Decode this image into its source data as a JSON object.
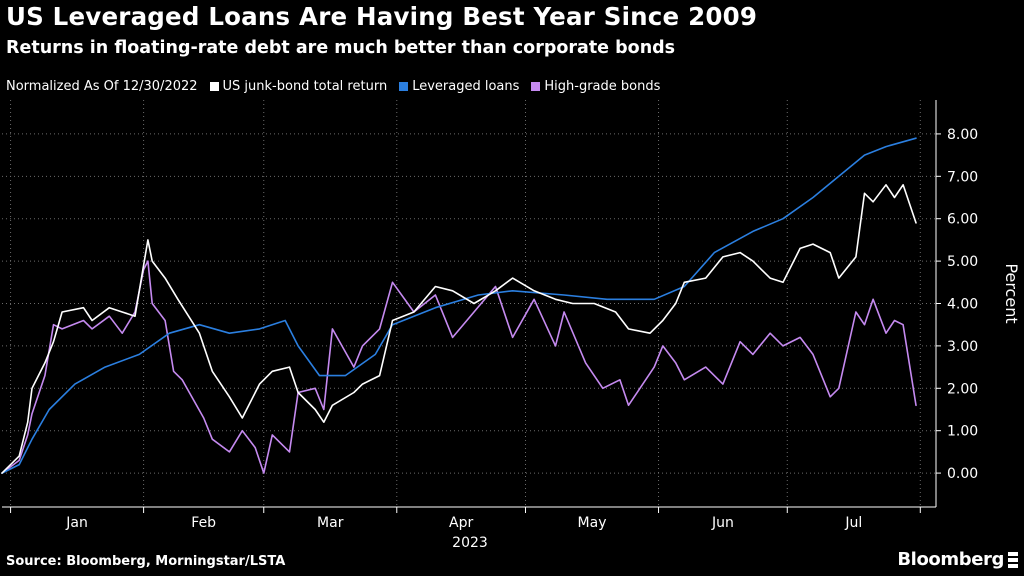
{
  "header": {
    "title": "US Leveraged Loans Are Having Best Year Since 2009",
    "subtitle": "Returns in floating-rate debt are much better than corporate bonds"
  },
  "legend": {
    "note": "Normalized As Of 12/30/2022"
  },
  "footer": {
    "source": "Source: Bloomberg, Morningstar/LSTA",
    "brand": "Bloomberg"
  },
  "colors": {
    "background": "#000000",
    "junk": "#ffffff",
    "loans": "#2b7fe0",
    "highgrade": "#c58af0",
    "axis": "#ffffff",
    "grid": "#6b6b6b"
  },
  "chart_data": {
    "type": "line",
    "title": "US Leveraged Loans Are Having Best Year Since 2009",
    "subtitle": "Returns in floating-rate debt are much better than corporate bonds",
    "ylabel": "Percent",
    "xlabel": "2023",
    "ylim": [
      -0.8,
      8.8
    ],
    "xlim": [
      "2022-12-30",
      "2023-07-31"
    ],
    "y_ticks": [
      "0.00",
      "1.00",
      "2.00",
      "3.00",
      "4.00",
      "5.00",
      "6.00",
      "7.00",
      "8.00"
    ],
    "x_ticks": [
      "Jan",
      "Feb",
      "Mar",
      "Apr",
      "May",
      "Jun",
      "Jul"
    ],
    "grid": true,
    "legend_position": "top-left",
    "series": [
      {
        "name": "US junk-bond total return",
        "points": [
          [
            "2022-12-30",
            0.0
          ],
          [
            "2023-01-03",
            0.4
          ],
          [
            "2023-01-05",
            1.2
          ],
          [
            "2023-01-06",
            2.0
          ],
          [
            "2023-01-09",
            2.6
          ],
          [
            "2023-01-11",
            3.1
          ],
          [
            "2023-01-13",
            3.8
          ],
          [
            "2023-01-18",
            3.9
          ],
          [
            "2023-01-20",
            3.6
          ],
          [
            "2023-01-24",
            3.9
          ],
          [
            "2023-01-27",
            3.8
          ],
          [
            "2023-01-30",
            3.7
          ],
          [
            "2023-02-01",
            4.9
          ],
          [
            "2023-02-02",
            5.5
          ],
          [
            "2023-02-03",
            5.0
          ],
          [
            "2023-02-06",
            4.6
          ],
          [
            "2023-02-09",
            4.1
          ],
          [
            "2023-02-14",
            3.3
          ],
          [
            "2023-02-17",
            2.4
          ],
          [
            "2023-02-21",
            1.8
          ],
          [
            "2023-02-24",
            1.3
          ],
          [
            "2023-02-28",
            2.1
          ],
          [
            "2023-03-03",
            2.4
          ],
          [
            "2023-03-07",
            2.5
          ],
          [
            "2023-03-09",
            1.9
          ],
          [
            "2023-03-13",
            1.5
          ],
          [
            "2023-03-15",
            1.2
          ],
          [
            "2023-03-17",
            1.6
          ],
          [
            "2023-03-22",
            1.9
          ],
          [
            "2023-03-24",
            2.1
          ],
          [
            "2023-03-28",
            2.3
          ],
          [
            "2023-03-31",
            3.6
          ],
          [
            "2023-04-05",
            3.8
          ],
          [
            "2023-04-10",
            4.4
          ],
          [
            "2023-04-14",
            4.3
          ],
          [
            "2023-04-19",
            4.0
          ],
          [
            "2023-04-24",
            4.3
          ],
          [
            "2023-04-28",
            4.6
          ],
          [
            "2023-05-03",
            4.3
          ],
          [
            "2023-05-08",
            4.1
          ],
          [
            "2023-05-12",
            4.0
          ],
          [
            "2023-05-17",
            4.0
          ],
          [
            "2023-05-22",
            3.8
          ],
          [
            "2023-05-25",
            3.4
          ],
          [
            "2023-05-30",
            3.3
          ],
          [
            "2023-06-02",
            3.6
          ],
          [
            "2023-06-05",
            4.0
          ],
          [
            "2023-06-07",
            4.5
          ],
          [
            "2023-06-12",
            4.6
          ],
          [
            "2023-06-16",
            5.1
          ],
          [
            "2023-06-20",
            5.2
          ],
          [
            "2023-06-23",
            5.0
          ],
          [
            "2023-06-27",
            4.6
          ],
          [
            "2023-06-30",
            4.5
          ],
          [
            "2023-07-04",
            5.3
          ],
          [
            "2023-07-07",
            5.4
          ],
          [
            "2023-07-11",
            5.2
          ],
          [
            "2023-07-13",
            4.6
          ],
          [
            "2023-07-17",
            5.1
          ],
          [
            "2023-07-19",
            6.6
          ],
          [
            "2023-07-21",
            6.4
          ],
          [
            "2023-07-24",
            6.8
          ],
          [
            "2023-07-26",
            6.5
          ],
          [
            "2023-07-28",
            6.8
          ],
          [
            "2023-07-31",
            5.9
          ]
        ]
      },
      {
        "name": "Leveraged loans",
        "points": [
          [
            "2022-12-30",
            0.0
          ],
          [
            "2023-01-03",
            0.2
          ],
          [
            "2023-01-06",
            0.8
          ],
          [
            "2023-01-10",
            1.5
          ],
          [
            "2023-01-16",
            2.1
          ],
          [
            "2023-01-23",
            2.5
          ],
          [
            "2023-01-31",
            2.8
          ],
          [
            "2023-02-07",
            3.3
          ],
          [
            "2023-02-14",
            3.5
          ],
          [
            "2023-02-21",
            3.3
          ],
          [
            "2023-02-28",
            3.4
          ],
          [
            "2023-03-06",
            3.6
          ],
          [
            "2023-03-09",
            3.0
          ],
          [
            "2023-03-14",
            2.3
          ],
          [
            "2023-03-20",
            2.3
          ],
          [
            "2023-03-27",
            2.8
          ],
          [
            "2023-03-31",
            3.5
          ],
          [
            "2023-04-10",
            3.9
          ],
          [
            "2023-04-20",
            4.2
          ],
          [
            "2023-04-28",
            4.3
          ],
          [
            "2023-05-10",
            4.2
          ],
          [
            "2023-05-20",
            4.1
          ],
          [
            "2023-05-31",
            4.1
          ],
          [
            "2023-06-07",
            4.4
          ],
          [
            "2023-06-14",
            5.2
          ],
          [
            "2023-06-23",
            5.7
          ],
          [
            "2023-06-30",
            6.0
          ],
          [
            "2023-07-07",
            6.5
          ],
          [
            "2023-07-13",
            7.0
          ],
          [
            "2023-07-19",
            7.5
          ],
          [
            "2023-07-24",
            7.7
          ],
          [
            "2023-07-31",
            7.9
          ]
        ]
      },
      {
        "name": "High-grade bonds",
        "points": [
          [
            "2022-12-30",
            0.0
          ],
          [
            "2023-01-03",
            0.3
          ],
          [
            "2023-01-05",
            0.9
          ],
          [
            "2023-01-06",
            1.4
          ],
          [
            "2023-01-09",
            2.3
          ],
          [
            "2023-01-11",
            3.5
          ],
          [
            "2023-01-13",
            3.4
          ],
          [
            "2023-01-18",
            3.6
          ],
          [
            "2023-01-20",
            3.4
          ],
          [
            "2023-01-24",
            3.7
          ],
          [
            "2023-01-27",
            3.3
          ],
          [
            "2023-01-30",
            3.8
          ],
          [
            "2023-02-01",
            4.8
          ],
          [
            "2023-02-02",
            5.0
          ],
          [
            "2023-02-03",
            4.0
          ],
          [
            "2023-02-06",
            3.6
          ],
          [
            "2023-02-08",
            2.4
          ],
          [
            "2023-02-10",
            2.2
          ],
          [
            "2023-02-15",
            1.3
          ],
          [
            "2023-02-17",
            0.8
          ],
          [
            "2023-02-21",
            0.5
          ],
          [
            "2023-02-24",
            1.0
          ],
          [
            "2023-02-27",
            0.6
          ],
          [
            "2023-03-01",
            0.0
          ],
          [
            "2023-03-03",
            0.9
          ],
          [
            "2023-03-07",
            0.5
          ],
          [
            "2023-03-09",
            1.9
          ],
          [
            "2023-03-13",
            2.0
          ],
          [
            "2023-03-15",
            1.5
          ],
          [
            "2023-03-17",
            3.4
          ],
          [
            "2023-03-22",
            2.5
          ],
          [
            "2023-03-24",
            3.0
          ],
          [
            "2023-03-28",
            3.4
          ],
          [
            "2023-03-31",
            4.5
          ],
          [
            "2023-04-05",
            3.8
          ],
          [
            "2023-04-10",
            4.2
          ],
          [
            "2023-04-12",
            3.7
          ],
          [
            "2023-04-14",
            3.2
          ],
          [
            "2023-04-19",
            3.8
          ],
          [
            "2023-04-24",
            4.4
          ],
          [
            "2023-04-28",
            3.2
          ],
          [
            "2023-05-03",
            4.1
          ],
          [
            "2023-05-08",
            3.0
          ],
          [
            "2023-05-10",
            3.8
          ],
          [
            "2023-05-15",
            2.6
          ],
          [
            "2023-05-19",
            2.0
          ],
          [
            "2023-05-23",
            2.2
          ],
          [
            "2023-05-25",
            1.6
          ],
          [
            "2023-05-31",
            2.5
          ],
          [
            "2023-06-02",
            3.0
          ],
          [
            "2023-06-05",
            2.6
          ],
          [
            "2023-06-07",
            2.2
          ],
          [
            "2023-06-12",
            2.5
          ],
          [
            "2023-06-16",
            2.1
          ],
          [
            "2023-06-20",
            3.1
          ],
          [
            "2023-06-23",
            2.8
          ],
          [
            "2023-06-27",
            3.3
          ],
          [
            "2023-06-30",
            3.0
          ],
          [
            "2023-07-04",
            3.2
          ],
          [
            "2023-07-07",
            2.8
          ],
          [
            "2023-07-11",
            1.8
          ],
          [
            "2023-07-13",
            2.0
          ],
          [
            "2023-07-17",
            3.8
          ],
          [
            "2023-07-19",
            3.5
          ],
          [
            "2023-07-21",
            4.1
          ],
          [
            "2023-07-24",
            3.3
          ],
          [
            "2023-07-26",
            3.6
          ],
          [
            "2023-07-28",
            3.5
          ],
          [
            "2023-07-31",
            1.6
          ]
        ]
      }
    ]
  }
}
